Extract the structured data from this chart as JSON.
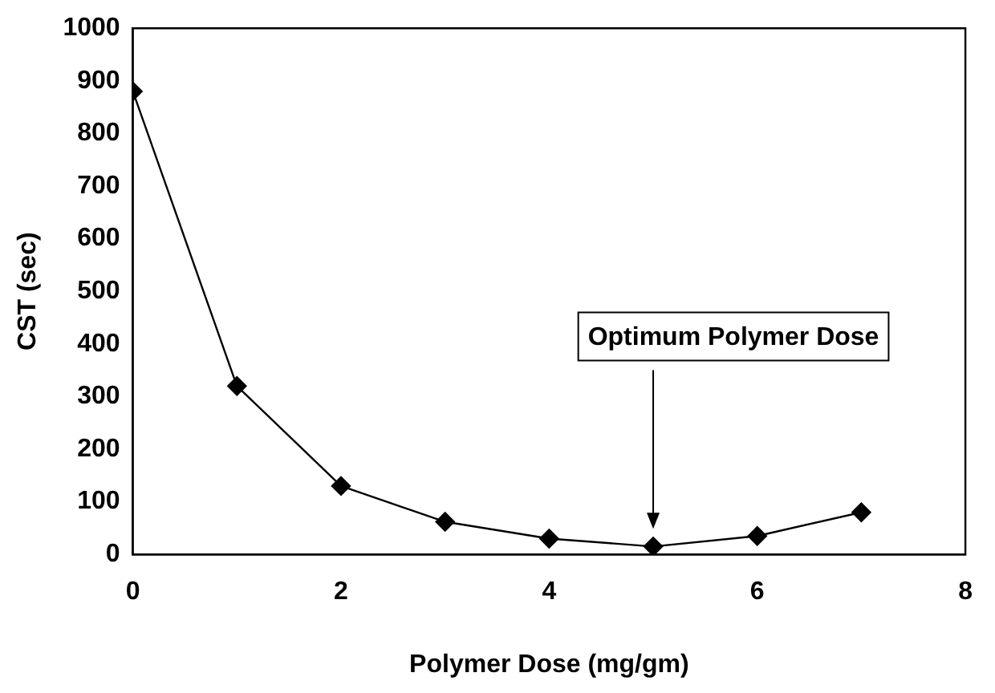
{
  "chart_data": {
    "type": "line",
    "xlabel": "Polymer Dose (mg/gm)",
    "ylabel": "CST (sec)",
    "x": [
      0,
      1,
      2,
      3,
      4,
      5,
      6,
      7
    ],
    "series": [
      {
        "color": "#000000",
        "values": [
          880,
          320,
          130,
          62,
          30,
          15,
          35,
          80
        ]
      }
    ],
    "xlim": [
      0,
      8
    ],
    "xticks": [
      0,
      2,
      4,
      6,
      8
    ],
    "ylim": [
      0,
      1000
    ],
    "yticks": [
      0,
      100,
      200,
      300,
      400,
      500,
      600,
      700,
      800,
      900,
      1000
    ],
    "grid": false,
    "legend": false,
    "marker": "diamond",
    "line_style": "solid",
    "annotations": [
      "Optimum Polymer Dose"
    ]
  }
}
